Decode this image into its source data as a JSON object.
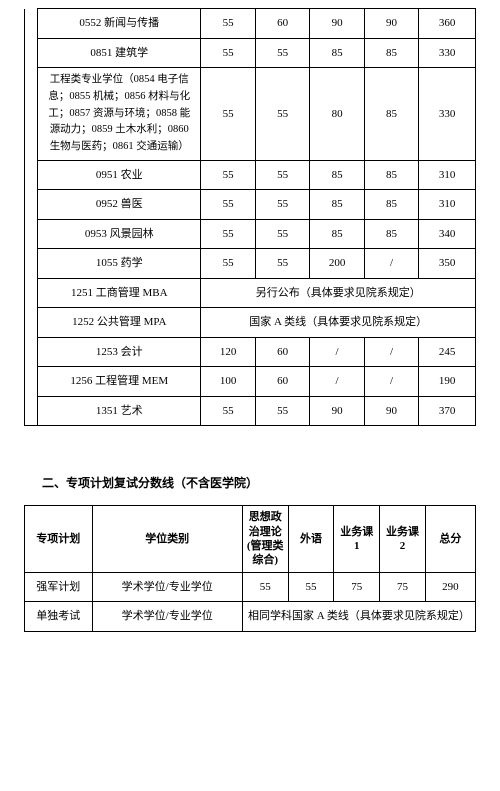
{
  "table1": {
    "rows": [
      {
        "name": "0552 新闻与传播",
        "s1": "55",
        "s2": "60",
        "s3": "90",
        "s4": "90",
        "total": "360"
      },
      {
        "name": "0851 建筑学",
        "s1": "55",
        "s2": "55",
        "s3": "85",
        "s4": "85",
        "total": "330"
      },
      {
        "name": "工程类专业学位（0854 电子信息；0855 机械；0856 材料与化工；0857 资源与环境；0858 能源动力；0859 土木水利；0860 生物与医药；0861 交通运输）",
        "s1": "55",
        "s2": "55",
        "s3": "80",
        "s4": "85",
        "total": "330",
        "multiline": true
      },
      {
        "name": "0951 农业",
        "s1": "55",
        "s2": "55",
        "s3": "85",
        "s4": "85",
        "total": "310"
      },
      {
        "name": "0952 兽医",
        "s1": "55",
        "s2": "55",
        "s3": "85",
        "s4": "85",
        "total": "310"
      },
      {
        "name": "0953 风景园林",
        "s1": "55",
        "s2": "55",
        "s3": "85",
        "s4": "85",
        "total": "340"
      },
      {
        "name": "1055 药学",
        "s1": "55",
        "s2": "55",
        "s3": "200",
        "s4": "/",
        "total": "350"
      },
      {
        "name": "1251 工商管理 MBA",
        "span": "另行公布（具体要求见院系规定）"
      },
      {
        "name": "1252 公共管理 MPA",
        "span": "国家 A 类线（具体要求见院系规定）"
      },
      {
        "name": "1253 会计",
        "s1": "120",
        "s2": "60",
        "s3": "/",
        "s4": "/",
        "total": "245"
      },
      {
        "name": "1256 工程管理 MEM",
        "s1": "100",
        "s2": "60",
        "s3": "/",
        "s4": "/",
        "total": "190"
      },
      {
        "name": "1351 艺术",
        "s1": "55",
        "s2": "55",
        "s3": "90",
        "s4": "90",
        "total": "370"
      }
    ]
  },
  "section2_title": "二、专项计划复试分数线（不含医学院）",
  "table2": {
    "headers": [
      "专项计划",
      "学位类别",
      "思想政治理论(管理类综合)",
      "外语",
      "业务课 1",
      "业务课 2",
      "总分"
    ],
    "rows": [
      {
        "plan": "强军计划",
        "type": "学术学位/专业学位",
        "s1": "55",
        "s2": "55",
        "s3": "75",
        "s4": "75",
        "total": "290"
      },
      {
        "plan": "单独考试",
        "type": "学术学位/专业学位",
        "span": "相同学科国家 A 类线（具体要求见院系规定）"
      }
    ]
  }
}
